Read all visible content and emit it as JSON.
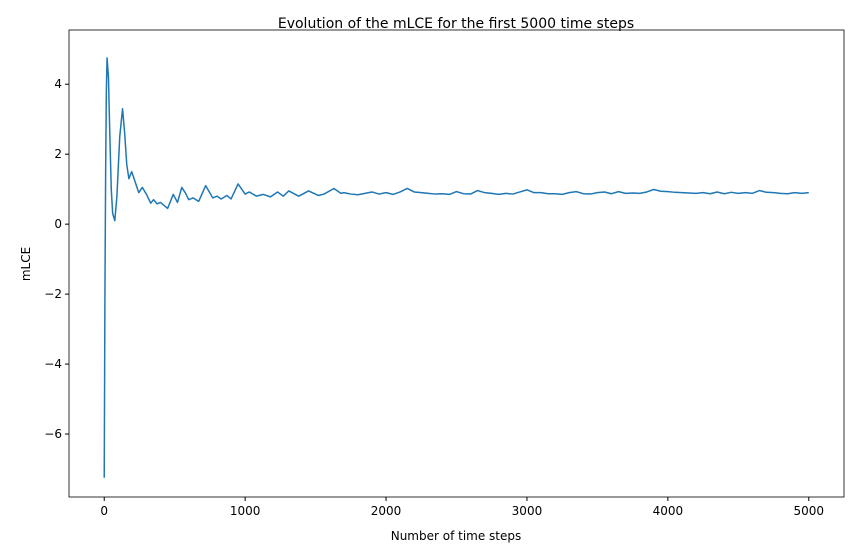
{
  "chart_data": {
    "type": "line",
    "title": "Evolution of the mLCE for the first 5000 time steps",
    "xlabel": "Number of time steps",
    "ylabel": "mLCE",
    "xlim": [
      -250,
      5250
    ],
    "ylim": [
      -7.8,
      5.55
    ],
    "xticks": [
      0,
      1000,
      2000,
      3000,
      4000,
      5000
    ],
    "yticks": [
      {
        "value": -6,
        "label": "−6"
      },
      {
        "value": -4,
        "label": "−4"
      },
      {
        "value": -2,
        "label": "−2"
      },
      0,
      2,
      4
    ],
    "grid": false,
    "x": [
      0,
      5,
      10,
      15,
      20,
      30,
      40,
      50,
      60,
      75,
      90,
      110,
      130,
      145,
      160,
      175,
      195,
      220,
      245,
      270,
      300,
      330,
      350,
      375,
      400,
      420,
      450,
      490,
      520,
      550,
      575,
      600,
      630,
      670,
      720,
      770,
      800,
      830,
      870,
      900,
      950,
      1000,
      1030,
      1080,
      1130,
      1180,
      1230,
      1270,
      1310,
      1380,
      1450,
      1520,
      1560,
      1630,
      1680,
      1700,
      1750,
      1800,
      1850,
      1900,
      1950,
      2000,
      2050,
      2100,
      2150,
      2200,
      2250,
      2300,
      2350,
      2400,
      2450,
      2500,
      2550,
      2600,
      2650,
      2700,
      2750,
      2800,
      2850,
      2900,
      2950,
      3000,
      3050,
      3100,
      3150,
      3200,
      3250,
      3300,
      3350,
      3400,
      3450,
      3500,
      3550,
      3600,
      3650,
      3700,
      3750,
      3800,
      3850,
      3900,
      3950,
      4000,
      4050,
      4100,
      4150,
      4200,
      4250,
      4300,
      4350,
      4400,
      4450,
      4500,
      4550,
      4600,
      4650,
      4700,
      4750,
      4800,
      4850,
      4900,
      4950,
      5000
    ],
    "series": [
      {
        "name": "mLCE",
        "color": "#1f77b4",
        "values": [
          -7.25,
          -2,
          1.5,
          3.8,
          4.75,
          4.2,
          2.5,
          1.0,
          0.3,
          0.1,
          0.8,
          2.5,
          3.3,
          2.6,
          1.7,
          1.3,
          1.5,
          1.2,
          0.9,
          1.05,
          0.85,
          0.6,
          0.7,
          0.58,
          0.62,
          0.55,
          0.45,
          0.85,
          0.62,
          1.05,
          0.9,
          0.7,
          0.75,
          0.65,
          1.1,
          0.75,
          0.8,
          0.72,
          0.82,
          0.72,
          1.15,
          0.86,
          0.92,
          0.8,
          0.85,
          0.78,
          0.92,
          0.8,
          0.95,
          0.8,
          0.95,
          0.82,
          0.86,
          1.02,
          0.88,
          0.9,
          0.86,
          0.84,
          0.88,
          0.92,
          0.86,
          0.9,
          0.85,
          0.92,
          1.02,
          0.92,
          0.9,
          0.88,
          0.86,
          0.87,
          0.85,
          0.93,
          0.87,
          0.86,
          0.96,
          0.9,
          0.88,
          0.85,
          0.88,
          0.86,
          0.92,
          0.98,
          0.9,
          0.9,
          0.87,
          0.87,
          0.85,
          0.9,
          0.93,
          0.87,
          0.86,
          0.9,
          0.92,
          0.87,
          0.93,
          0.88,
          0.89,
          0.88,
          0.92,
          0.99,
          0.94,
          0.93,
          0.91,
          0.9,
          0.89,
          0.88,
          0.9,
          0.87,
          0.92,
          0.87,
          0.91,
          0.88,
          0.9,
          0.88,
          0.96,
          0.91,
          0.9,
          0.88,
          0.87,
          0.9,
          0.88,
          0.9
        ]
      }
    ]
  }
}
